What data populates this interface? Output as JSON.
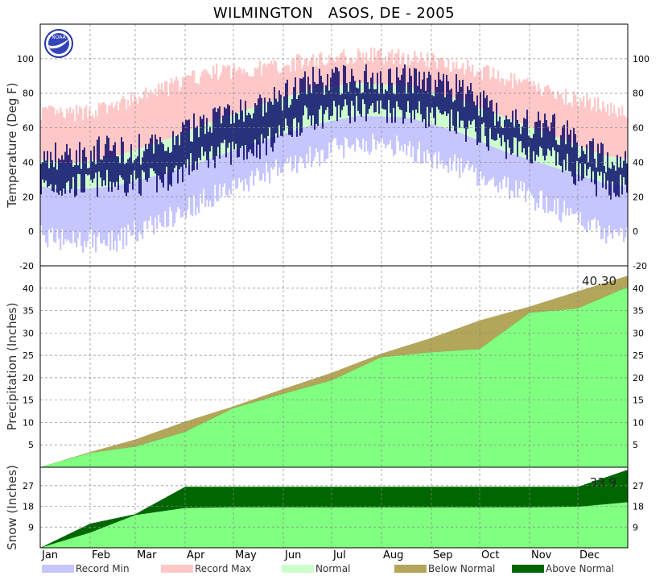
{
  "title": "WILMINGTON   ASOS, DE - 2005",
  "logo": "NOAA",
  "colors": {
    "record_min": "#c6c6ff",
    "record_max": "#ffc8c8",
    "normal": "#ccffcc",
    "observed": "#000066",
    "precip_observed": "#80ff80",
    "below_normal": "#b3a55a",
    "above_normal": "#006600",
    "grid": "#888888"
  },
  "chart_data": [
    {
      "type": "bar",
      "name": "temperature",
      "ylabel": "Temperature (Deg F)",
      "ylim": [
        -20,
        120
      ],
      "yticks": [
        -20,
        0,
        20,
        40,
        60,
        80,
        100
      ],
      "x": [
        "Jan",
        "Feb",
        "Mar",
        "Apr",
        "May",
        "Jun",
        "Jul",
        "Aug",
        "Sep",
        "Oct",
        "Nov",
        "Dec"
      ],
      "normal_high_by_month": [
        39,
        43,
        52,
        63,
        73,
        82,
        86,
        84,
        77,
        66,
        55,
        44
      ],
      "normal_low_by_month": [
        24,
        26,
        33,
        42,
        52,
        61,
        67,
        66,
        58,
        46,
        37,
        28
      ],
      "record_high_by_month": [
        67,
        72,
        82,
        92,
        94,
        99,
        102,
        101,
        97,
        88,
        80,
        72
      ],
      "record_low_by_month": [
        -5,
        -6,
        6,
        20,
        32,
        42,
        52,
        48,
        38,
        26,
        14,
        0
      ],
      "observed_high_by_month": [
        44,
        47,
        48,
        66,
        70,
        86,
        89,
        88,
        83,
        66,
        60,
        42
      ],
      "observed_low_by_month": [
        26,
        28,
        29,
        44,
        49,
        66,
        71,
        70,
        62,
        50,
        41,
        26
      ],
      "grid": true
    },
    {
      "type": "area",
      "name": "precipitation",
      "ylabel": "Precipitation (Inches)",
      "ylim": [
        0,
        45
      ],
      "yticks": [
        5,
        10,
        15,
        20,
        25,
        30,
        35,
        40
      ],
      "x": [
        "Jan",
        "Feb",
        "Mar",
        "Apr",
        "May",
        "Jun",
        "Jul",
        "Aug",
        "Sep",
        "Oct",
        "Nov",
        "Dec"
      ],
      "observed_cumulative_end_of_month": [
        3.2,
        4.6,
        7.9,
        13.2,
        16.4,
        19.4,
        24.6,
        25.7,
        26.4,
        34.5,
        35.5,
        40.3
      ],
      "normal_cumulative_end_of_month": [
        3.4,
        6.2,
        10.2,
        13.6,
        17.5,
        21.1,
        25.4,
        28.9,
        32.8,
        35.9,
        39.3,
        42.8
      ],
      "total_label": "40.30",
      "grid": true
    },
    {
      "type": "area",
      "name": "snow",
      "ylabel": "Snow (Inches)",
      "ylim": [
        0,
        35
      ],
      "yticks": [
        9,
        18,
        27
      ],
      "x": [
        "Jan",
        "Feb",
        "Mar",
        "Apr",
        "May",
        "Jun",
        "Jul",
        "Aug",
        "Sep",
        "Oct",
        "Nov",
        "Dec"
      ],
      "observed_cumulative_end_of_month": [
        10.5,
        14.6,
        26.5,
        26.5,
        26.5,
        26.5,
        26.5,
        26.5,
        26.5,
        26.5,
        26.5,
        33.9
      ],
      "normal_cumulative_end_of_month": [
        6.6,
        14.2,
        17.3,
        17.6,
        17.6,
        17.6,
        17.6,
        17.6,
        17.6,
        17.6,
        17.8,
        19.8
      ],
      "total_label": "33.9",
      "grid": true
    }
  ],
  "legend": [
    {
      "label": "Record Min",
      "color": "#c6c6ff"
    },
    {
      "label": "Record Max",
      "color": "#ffc8c8"
    },
    {
      "label": "Normal",
      "color": "#ccffcc"
    },
    {
      "label": "Below Normal",
      "color": "#b3a55a"
    },
    {
      "label": "Above Normal",
      "color": "#006600"
    }
  ]
}
